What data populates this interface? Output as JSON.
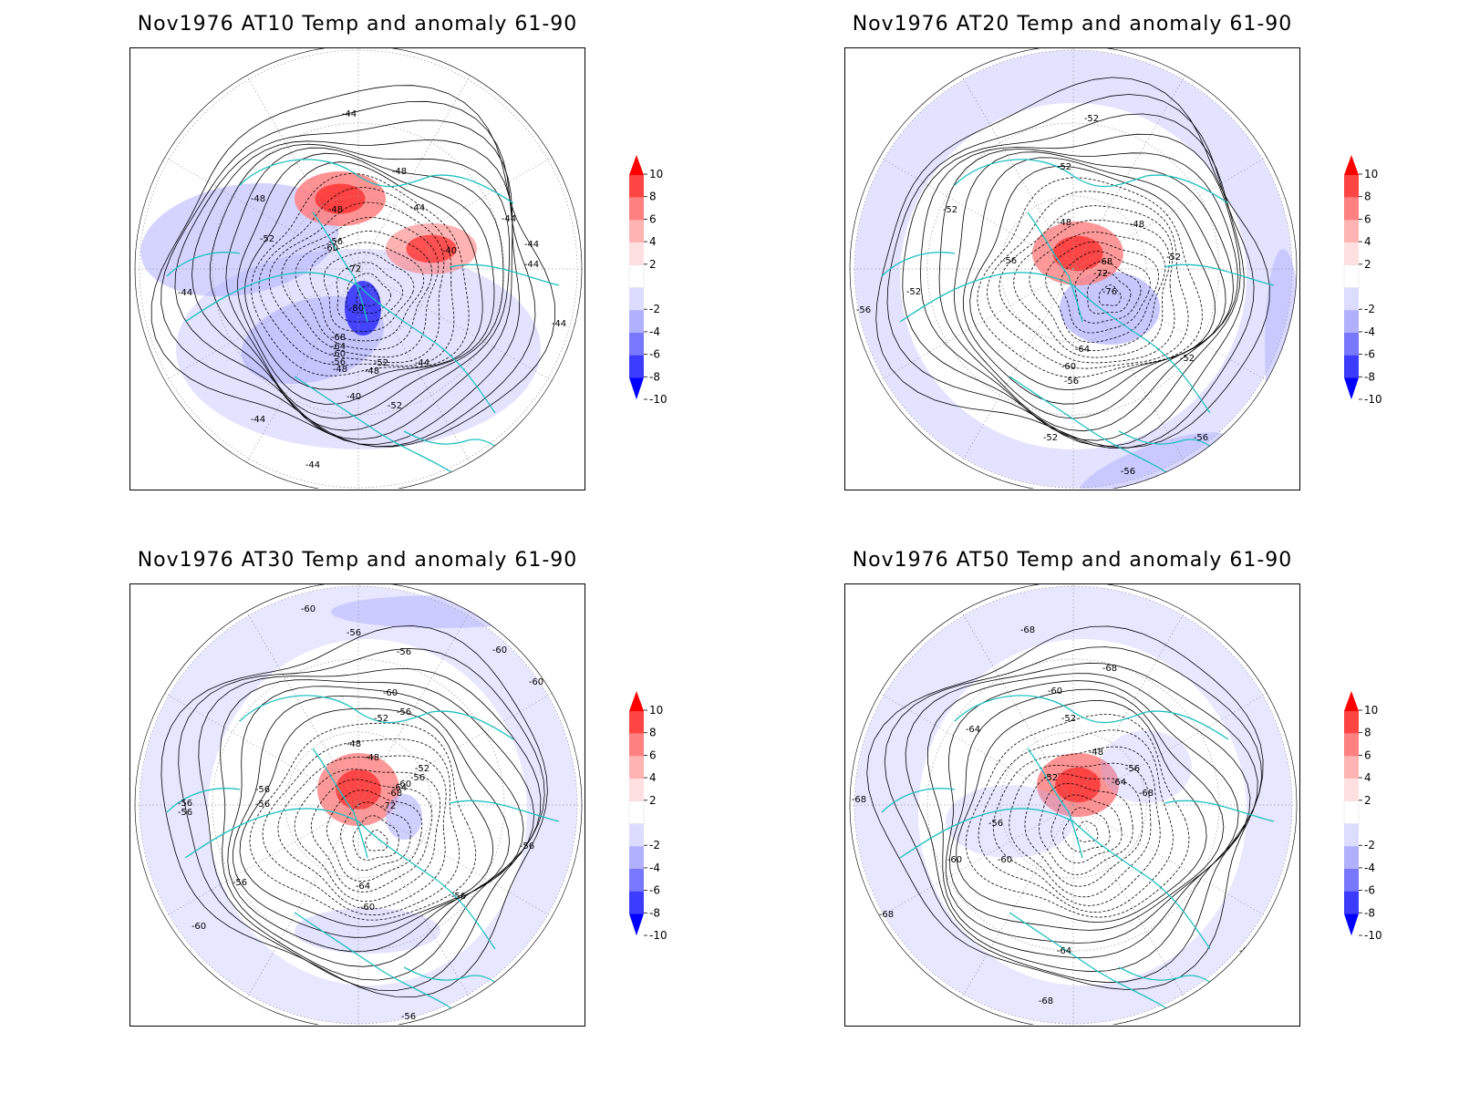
{
  "panels": [
    {
      "title": "Nov1976 AT10 Temp and anomaly 61-90",
      "contour_labels": [
        "-44",
        "-44",
        "-48",
        "-48",
        "-48",
        "-52",
        "-52",
        "-48",
        "-44",
        "-44",
        "-44",
        "-44",
        "-44",
        "-40",
        "-56",
        "-60",
        "-72",
        "-80",
        "-68",
        "-64",
        "-60",
        "-56",
        "-52",
        "-48",
        "-44",
        "-40",
        "-44",
        "-44",
        "-44"
      ]
    },
    {
      "title": "Nov1976 AT20 Temp and anomaly 61-90",
      "contour_labels": [
        "-52",
        "-52",
        "-52",
        "-48",
        "-48",
        "-56",
        "-68",
        "-72",
        "-76",
        "-52",
        "-52",
        "-56",
        "-64",
        "-60",
        "-56",
        "-52",
        "-52",
        "-56",
        "-56"
      ]
    },
    {
      "title": "Nov1976 AT30 Temp and anomaly 61-90",
      "contour_labels": [
        "-60",
        "-56",
        "-56",
        "-60",
        "-60",
        "-60",
        "-52",
        "-56",
        "-48",
        "-48",
        "-52",
        "-56",
        "-60",
        "-64",
        "-68",
        "-72",
        "-56",
        "-56",
        "-56",
        "-56",
        "-56",
        "-56",
        "-64",
        "-60",
        "-56",
        "-60",
        "-56"
      ]
    },
    {
      "title": "Nov1976 AT50 Temp and anomaly 61-90",
      "contour_labels": [
        "-68",
        "-68",
        "-60",
        "-64",
        "-52",
        "-48",
        "-56",
        "-52",
        "-64",
        "-68",
        "-60",
        "-68",
        "-56",
        "-60",
        "-64",
        "-68",
        "-68",
        "-68"
      ]
    }
  ],
  "colorbar": {
    "ticks": [
      "10",
      "8",
      "6",
      "4",
      "2",
      "-2",
      "-4",
      "-6",
      "-8",
      "-10"
    ],
    "colors": [
      "#ff0000",
      "#ff4444",
      "#ff8080",
      "#ffb3b3",
      "#ffe0e0",
      "#ffffff",
      "#dcdcff",
      "#b0b0ff",
      "#7878ff",
      "#3c3cff",
      "#0000ff"
    ]
  },
  "colors": {
    "coastline": "#20c0c0",
    "contour": "#000000",
    "grid": "#999999"
  }
}
